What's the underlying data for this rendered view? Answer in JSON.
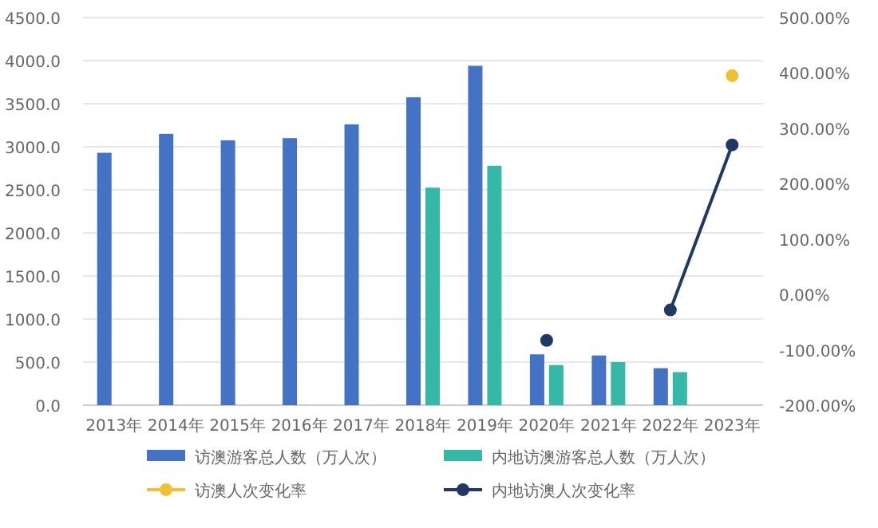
{
  "chart_data": {
    "type": "bar",
    "categories": [
      "2013年",
      "2014年",
      "2015年",
      "2016年",
      "2017年",
      "2018年",
      "2019年",
      "2020年",
      "2021年",
      "2022年",
      "2023年"
    ],
    "series": [
      {
        "name": "访澳游客总人数（万人次）",
        "color": "#4472c4",
        "values": [
          2930,
          3150,
          3075,
          3100,
          3260,
          3575,
          3940,
          590,
          577,
          429,
          null
        ]
      },
      {
        "name": "内地访澳游客总人数（万人次）",
        "color": "#36b8a6",
        "values": [
          null,
          null,
          null,
          null,
          null,
          2525,
          2780,
          466,
          500,
          384,
          null
        ]
      },
      {
        "name": "访澳人次变化率",
        "type": "line",
        "axis": "y2",
        "color": "#f0c030",
        "values": [
          null,
          null,
          null,
          null,
          null,
          null,
          null,
          null,
          null,
          null,
          395
        ]
      },
      {
        "name": "内地访澳人次变化率",
        "type": "line",
        "axis": "y2",
        "color": "#203864",
        "values": [
          null,
          null,
          null,
          null,
          null,
          null,
          null,
          -83,
          null,
          -28,
          270
        ]
      }
    ],
    "ylim": [
      0,
      4500
    ],
    "yticks": [
      {
        "value": 0,
        "label": "0.0"
      },
      {
        "value": 500,
        "label": "500.0"
      },
      {
        "value": 1000,
        "label": "1000.0"
      },
      {
        "value": 1500,
        "label": "1500.0"
      },
      {
        "value": 2000,
        "label": "2000.0"
      },
      {
        "value": 2500,
        "label": "2500.0"
      },
      {
        "value": 3000,
        "label": "3000.0"
      },
      {
        "value": 3500,
        "label": "3500.0"
      },
      {
        "value": 4000,
        "label": "4000.0"
      },
      {
        "value": 4500,
        "label": "4500.0"
      }
    ],
    "y2lim": [
      -200,
      500
    ],
    "y2ticks": [
      {
        "value": -200,
        "label": "-200.00%"
      },
      {
        "value": -100,
        "label": "-100.00%"
      },
      {
        "value": 0,
        "label": "0.00%"
      },
      {
        "value": 100,
        "label": "100.00%"
      },
      {
        "value": 200,
        "label": "200.00%"
      },
      {
        "value": 300,
        "label": "300.00%"
      },
      {
        "value": 400,
        "label": "400.00%"
      },
      {
        "value": 500,
        "label": "500.00%"
      }
    ],
    "grid": "y",
    "legend": "bottom",
    "marker": "circle"
  }
}
